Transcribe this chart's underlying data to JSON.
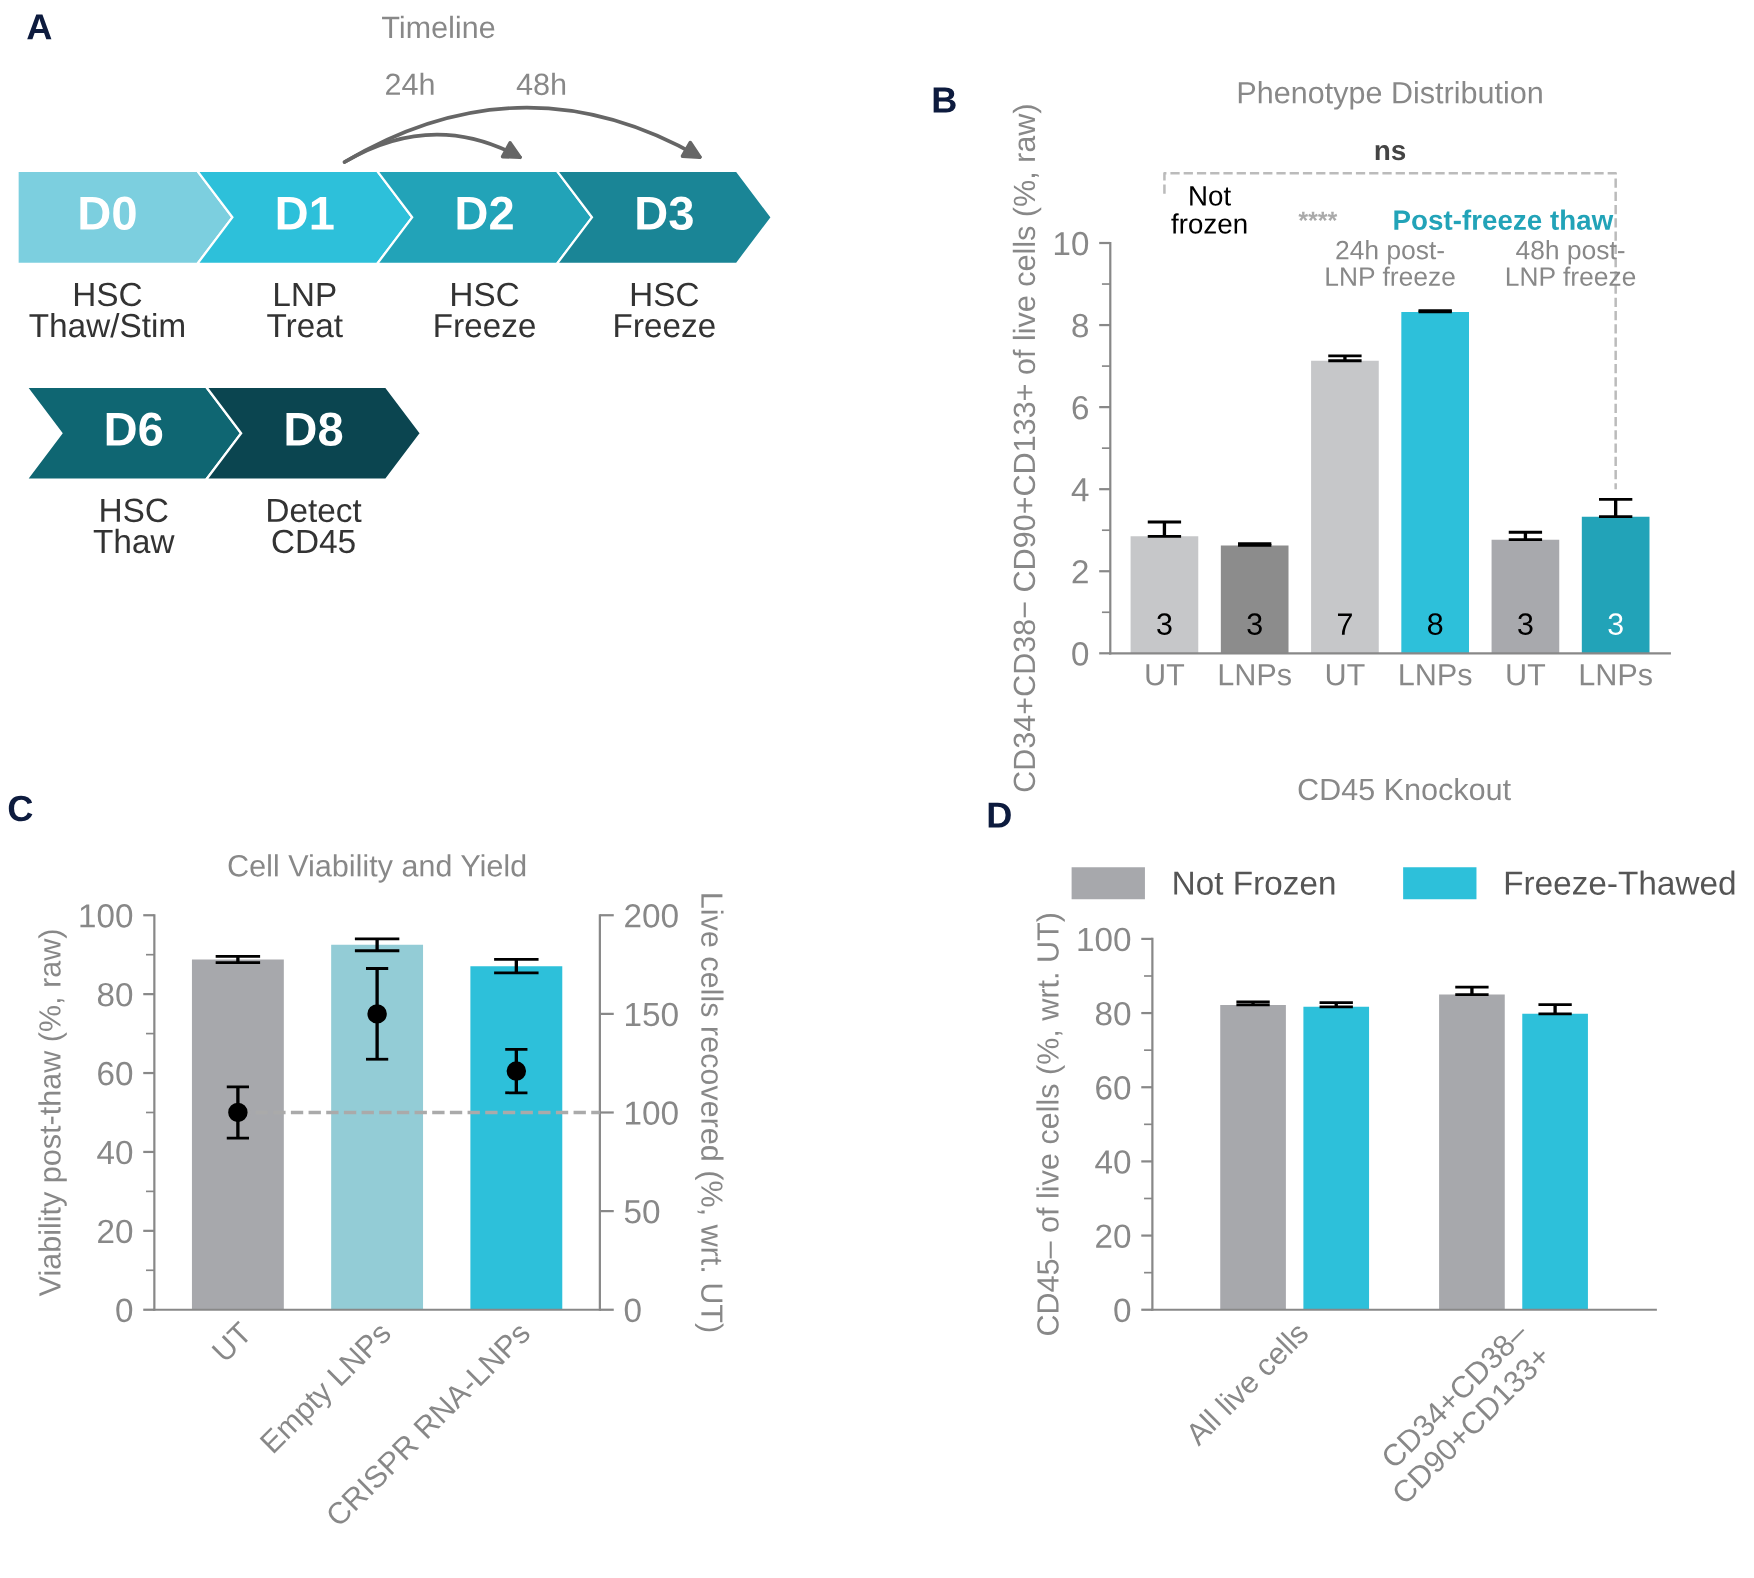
{
  "chart_data": [
    {
      "type": "other",
      "title": "Timeline",
      "categories": [
        "D0",
        "D1",
        "D2",
        "D3",
        "D6",
        "D8"
      ],
      "colors": [
        "#7ccfdf",
        "#2dc0da",
        "#22a3b8",
        "#1a8596",
        "#0f6672",
        "#0b4550"
      ],
      "annotations": [
        "A",
        "24h",
        "48h",
        "HSC\nThaw/Stim",
        "LNP\nTreat",
        "HSC\nFreeze",
        "HSC\nFreeze",
        "HSC\nThaw",
        "Detect\nCD45"
      ]
    },
    {
      "type": "bar",
      "title": "Phenotype Distribution",
      "ylabel": "CD34+CD38− CD90+CD133+ of live cells (%, raw)",
      "categories": [
        "UT",
        "LNPs",
        "UT",
        "LNPs",
        "UT",
        "LNPs"
      ],
      "values": [
        2.85,
        2.63,
        7.13,
        8.32,
        2.77,
        3.33
      ],
      "colors": [
        "#c6c7c9",
        "#8c8c8c",
        "#c6c7c9",
        "#2dc0da",
        "#a8a9ad",
        "#22a3b8"
      ],
      "errors": [
        [
          2.85,
          3.2
        ],
        [
          2.63,
          2.67
        ],
        [
          7.13,
          7.25
        ],
        [
          8.32,
          8.35
        ],
        [
          2.77,
          2.95
        ],
        [
          3.33,
          3.75
        ]
      ],
      "value_labels": [
        "3",
        "3",
        "7",
        "8",
        "3",
        "3"
      ],
      "ylim": [
        0,
        10
      ],
      "yticks": [
        0,
        2,
        4,
        6,
        8,
        10
      ],
      "annotations": [
        "B",
        "ns",
        "Not\nfrozen",
        "****",
        "Post-freeze thaw",
        "24h post-\nLNP freeze",
        "48h post-\nLNP freeze"
      ]
    },
    {
      "type": "bar",
      "title": "Cell Viability and Yield",
      "ylabel": "Viability post-thaw (%, raw)",
      "y2label": "Live cells recovered (%, wrt. UT)",
      "categories": [
        "UT",
        "Empty LNPs",
        "CRISPR RNA-LNPs"
      ],
      "series": [
        {
          "type": "bar",
          "colors": [
            "#a7a8ac",
            "#93ccd6",
            "#2dc0da"
          ],
          "values": [
            88.8,
            92.5,
            87.1
          ],
          "errors": [
            0.8,
            1.5,
            1.7
          ]
        },
        {
          "type": "scatter",
          "axis": "y2",
          "color": "#000000",
          "x": [
            "UT",
            "Empty LNPs",
            "CRISPR RNA-LNPs"
          ],
          "values": [
            100,
            150,
            121
          ],
          "errors": [
            [
              87,
              113
            ],
            [
              127,
              173
            ],
            [
              110,
              132
            ]
          ]
        }
      ],
      "ylim": [
        0,
        100
      ],
      "yticks": [
        0,
        20,
        40,
        60,
        80,
        100
      ],
      "y2lim": [
        0,
        200
      ],
      "y2ticks": [
        0,
        50,
        100,
        150,
        200
      ],
      "ref_lines": [
        {
          "axis": "y2",
          "value": 100,
          "color": "#aaaaaa",
          "line_style": "dashed"
        }
      ],
      "annotations": [
        "C"
      ]
    },
    {
      "type": "bar",
      "title": "CD45 Knockout",
      "ylabel": "CD45– of live cells (%, wrt. UT)",
      "categories": [
        "All live cells",
        "CD34+CD38–\nCD90+CD133+"
      ],
      "series": [
        {
          "name": "Not Frozen",
          "color": "#a7a8ac",
          "values": [
            82.2,
            85.0
          ],
          "errors": [
            [
              82.2,
              83.0
            ],
            [
              85.0,
              87.0
            ]
          ]
        },
        {
          "name": "Freeze-Thawed",
          "color": "#2dc0da",
          "values": [
            81.7,
            79.8
          ],
          "errors": [
            [
              81.7,
              82.8
            ],
            [
              79.8,
              82.3
            ]
          ]
        }
      ],
      "ylim": [
        0,
        100
      ],
      "yticks": [
        0,
        20,
        40,
        60,
        80,
        100
      ],
      "legend": "top",
      "annotations": [
        "D"
      ]
    }
  ]
}
